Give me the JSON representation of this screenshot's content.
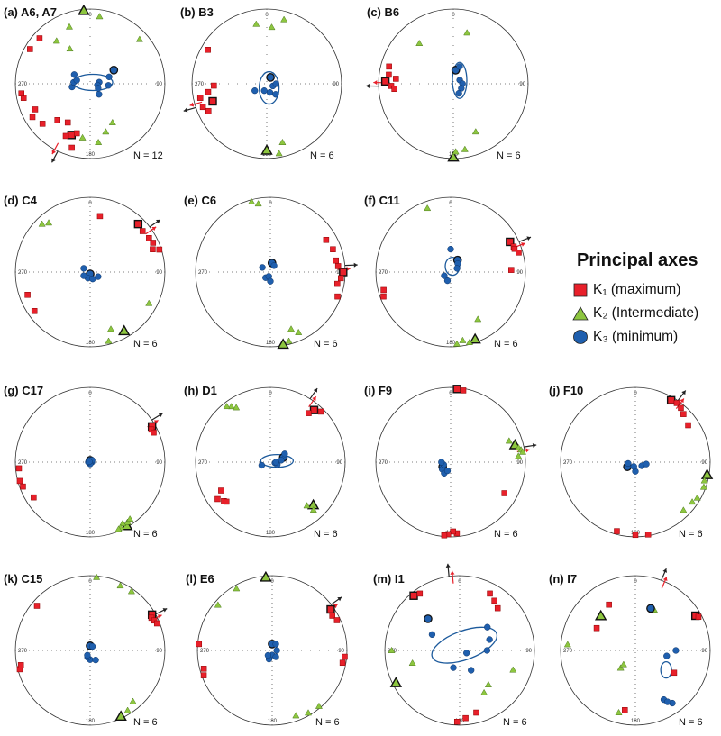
{
  "legend": {
    "title": "Principal axes",
    "items": [
      {
        "symbol": "square",
        "label": "K₁ (maximum)",
        "color": "#e8202a"
      },
      {
        "symbol": "triangle",
        "label": "K₂ (Intermediate)",
        "color": "#8dc63f"
      },
      {
        "symbol": "circle",
        "label": "K₃ (minimum)",
        "color": "#1f5fae"
      }
    ]
  },
  "colors": {
    "k1": "#e8202a",
    "k2": "#8dc63f",
    "k3": "#1f5fae",
    "k1_ellipse": "#d71920",
    "k2_ellipse": "#6cb33f",
    "k3_ellipse": "#1c5a9c"
  },
  "azimuth_labels": [
    "0",
    "90",
    "180",
    "270"
  ],
  "chart_data": [
    {
      "type": "scatter",
      "projection": "equal-area stereonet",
      "label": "(a)",
      "site": "A6, A7",
      "n": "N = 12",
      "k1": [
        [
          200,
          28
        ],
        [
          195,
          32
        ],
        [
          205,
          24
        ],
        [
          230,
          18
        ],
        [
          240,
          12
        ],
        [
          245,
          20
        ],
        [
          258,
          10
        ],
        [
          262,
          8
        ],
        [
          222,
          35
        ],
        [
          210,
          40
        ],
        [
          300,
          8
        ],
        [
          312,
          10
        ],
        [
          196,
          12
        ]
      ],
      "k2": [
        [
          355,
          2
        ],
        [
          8,
          10
        ],
        [
          48,
          12
        ],
        [
          150,
          40
        ],
        [
          162,
          33
        ],
        [
          172,
          22
        ],
        [
          188,
          28
        ],
        [
          330,
          45
        ],
        [
          322,
          28
        ],
        [
          340,
          20
        ]
      ],
      "k3": [
        [
          60,
          60
        ],
        [
          70,
          68
        ],
        [
          80,
          80
        ],
        [
          100,
          82
        ],
        [
          120,
          80
        ],
        [
          140,
          75
        ],
        [
          260,
          70
        ],
        [
          275,
          72
        ],
        [
          285,
          75
        ],
        [
          300,
          70
        ],
        [
          95,
          70
        ]
      ]
    },
    {
      "type": "scatter",
      "projection": "equal-area stereonet",
      "label": "(b)",
      "site": "B3",
      "n": "N = 6",
      "k1": [
        [
          252,
          25
        ],
        [
          258,
          10
        ],
        [
          245,
          15
        ],
        [
          262,
          22
        ],
        [
          268,
          30
        ],
        [
          250,
          10
        ],
        [
          300,
          10
        ]
      ],
      "k2": [
        [
          180,
          12
        ],
        [
          170,
          6
        ],
        [
          165,
          20
        ],
        [
          5,
          25
        ],
        [
          15,
          12
        ],
        [
          350,
          20
        ]
      ],
      "k3": [
        [
          30,
          82
        ],
        [
          160,
          80
        ],
        [
          200,
          82
        ],
        [
          240,
          75
        ],
        [
          110,
          83
        ],
        [
          90,
          80
        ],
        [
          140,
          75
        ]
      ]
    },
    {
      "type": "scatter",
      "projection": "equal-area stereonet",
      "label": "(c)",
      "site": "B6",
      "n": "N = 6",
      "k1": [
        [
          272,
          10
        ],
        [
          268,
          18
        ],
        [
          265,
          22
        ],
        [
          278,
          14
        ],
        [
          275,
          24
        ],
        [
          285,
          12
        ]
      ],
      "k2": [
        [
          180,
          2
        ],
        [
          178,
          10
        ],
        [
          170,
          12
        ],
        [
          155,
          30
        ],
        [
          320,
          30
        ],
        [
          15,
          30
        ]
      ],
      "k3": [
        [
          10,
          75
        ],
        [
          60,
          82
        ],
        [
          90,
          80
        ],
        [
          120,
          80
        ],
        [
          150,
          78
        ],
        [
          20,
          70
        ]
      ]
    },
    {
      "type": "scatter",
      "projection": "equal-area stereonet",
      "label": "(d)",
      "site": "C4",
      "n": "N = 6",
      "k1": [
        [
          45,
          10
        ],
        [
          52,
          12
        ],
        [
          60,
          10
        ],
        [
          65,
          8
        ],
        [
          70,
          12
        ],
        [
          72,
          3
        ],
        [
          10,
          25
        ],
        [
          235,
          10
        ],
        [
          250,
          12
        ]
      ],
      "k2": [
        [
          150,
          10
        ],
        [
          160,
          20
        ],
        [
          165,
          5
        ],
        [
          320,
          15
        ],
        [
          315,
          10
        ],
        [
          118,
          12
        ]
      ],
      "k3": [
        [
          180,
          88
        ],
        [
          200,
          83
        ],
        [
          160,
          82
        ],
        [
          120,
          80
        ],
        [
          240,
          82
        ],
        [
          300,
          82
        ]
      ]
    },
    {
      "type": "scatter",
      "projection": "equal-area stereonet",
      "label": "(e)",
      "site": "C6",
      "n": "N = 6",
      "k1": [
        [
          90,
          3
        ],
        [
          85,
          10
        ],
        [
          80,
          12
        ],
        [
          95,
          6
        ],
        [
          100,
          10
        ],
        [
          60,
          15
        ],
        [
          70,
          12
        ],
        [
          110,
          5
        ]
      ],
      "k2": [
        [
          170,
          2
        ],
        [
          160,
          20
        ],
        [
          165,
          5
        ],
        [
          345,
          3
        ],
        [
          350,
          8
        ],
        [
          155,
          12
        ]
      ],
      "k3": [
        [
          10,
          80
        ],
        [
          30,
          82
        ],
        [
          220,
          82
        ],
        [
          200,
          85
        ],
        [
          180,
          80
        ],
        [
          300,
          80
        ]
      ]
    },
    {
      "type": "scatter",
      "projection": "equal-area stereonet",
      "label": "(f)",
      "site": "C11",
      "n": "N = 6",
      "k1": [
        [
          63,
          12
        ],
        [
          68,
          10
        ],
        [
          70,
          10
        ],
        [
          74,
          6
        ],
        [
          88,
          20
        ],
        [
          250,
          5
        ],
        [
          255,
          8
        ]
      ],
      "k2": [
        [
          160,
          5
        ],
        [
          165,
          3
        ],
        [
          170,
          8
        ],
        [
          175,
          4
        ],
        [
          150,
          28
        ],
        [
          340,
          10
        ]
      ],
      "k3": [
        [
          30,
          75
        ],
        [
          40,
          78
        ],
        [
          60,
          82
        ],
        [
          200,
          80
        ],
        [
          240,
          82
        ],
        [
          0,
          65
        ]
      ]
    },
    {
      "type": "scatter",
      "projection": "equal-area stereonet",
      "label": "(g)",
      "site": "C17",
      "n": "N = 6",
      "k1": [
        [
          60,
          5
        ],
        [
          62,
          8
        ],
        [
          65,
          7
        ],
        [
          250,
          5
        ],
        [
          255,
          3
        ],
        [
          265,
          5
        ],
        [
          238,
          12
        ]
      ],
      "k2": [
        [
          150,
          2
        ],
        [
          148,
          6
        ],
        [
          152,
          8
        ],
        [
          155,
          4
        ],
        [
          157,
          3
        ],
        [
          145,
          8
        ]
      ],
      "k3": [
        [
          0,
          88
        ],
        [
          90,
          88
        ],
        [
          180,
          88
        ],
        [
          270,
          88
        ],
        [
          45,
          87
        ],
        [
          300,
          89
        ]
      ]
    },
    {
      "type": "scatter",
      "projection": "equal-area stereonet",
      "label": "(h)",
      "site": "D1",
      "n": "N = 6",
      "k1": [
        [
          40,
          10
        ],
        [
          38,
          18
        ],
        [
          45,
          5
        ],
        [
          235,
          15
        ],
        [
          230,
          20
        ],
        [
          228,
          22
        ],
        [
          240,
          25
        ]
      ],
      "k2": [
        [
          135,
          20
        ],
        [
          138,
          15
        ],
        [
          325,
          10
        ],
        [
          322,
          6
        ],
        [
          328,
          15
        ],
        [
          140,
          25
        ]
      ],
      "k3": [
        [
          70,
          75
        ],
        [
          80,
          78
        ],
        [
          100,
          85
        ],
        [
          250,
          80
        ],
        [
          60,
          72
        ],
        [
          110,
          82
        ],
        [
          90,
          84
        ]
      ]
    },
    {
      "type": "scatter",
      "projection": "equal-area stereonet",
      "label": "(i)",
      "site": "F9",
      "n": "N = 6",
      "k1": [
        [
          5,
          2
        ],
        [
          10,
          3
        ],
        [
          175,
          5
        ],
        [
          178,
          8
        ],
        [
          182,
          4
        ],
        [
          185,
          2
        ],
        [
          120,
          18
        ]
      ],
      "k2": [
        [
          75,
          12
        ],
        [
          78,
          8
        ],
        [
          80,
          5
        ],
        [
          82,
          3
        ],
        [
          85,
          10
        ],
        [
          70,
          18
        ]
      ],
      "k3": [
        [
          240,
          80
        ],
        [
          230,
          78
        ],
        [
          250,
          82
        ],
        [
          270,
          80
        ],
        [
          210,
          76
        ],
        [
          200,
          80
        ]
      ]
    },
    {
      "type": "scatter",
      "projection": "equal-area stereonet",
      "label": "(j)",
      "site": "F10",
      "n": "N = 6",
      "k1": [
        [
          30,
          5
        ],
        [
          35,
          4
        ],
        [
          40,
          6
        ],
        [
          45,
          10
        ],
        [
          55,
          15
        ],
        [
          180,
          3
        ],
        [
          195,
          5
        ],
        [
          170,
          2
        ]
      ],
      "k2": [
        [
          100,
          3
        ],
        [
          105,
          5
        ],
        [
          110,
          3
        ],
        [
          120,
          5
        ],
        [
          125,
          8
        ],
        [
          135,
          10
        ]
      ],
      "k3": [
        [
          240,
          80
        ],
        [
          260,
          82
        ],
        [
          180,
          80
        ],
        [
          120,
          82
        ],
        [
          100,
          78
        ],
        [
          200,
          85
        ]
      ]
    },
    {
      "type": "scatter",
      "projection": "equal-area stereonet",
      "label": "(k)",
      "site": "C15",
      "n": "N = 6",
      "k1": [
        [
          60,
          5
        ],
        [
          62,
          8
        ],
        [
          65,
          6
        ],
        [
          68,
          4
        ],
        [
          255,
          3
        ],
        [
          258,
          6
        ],
        [
          310,
          8
        ]
      ],
      "k2": [
        [
          155,
          3
        ],
        [
          148,
          6
        ],
        [
          140,
          12
        ],
        [
          5,
          2
        ],
        [
          25,
          5
        ],
        [
          35,
          4
        ]
      ],
      "k3": [
        [
          0,
          85
        ],
        [
          30,
          85
        ],
        [
          180,
          80
        ],
        [
          200,
          82
        ],
        [
          150,
          78
        ],
        [
          210,
          84
        ]
      ]
    },
    {
      "type": "scatter",
      "projection": "equal-area stereonet",
      "label": "(l)",
      "site": "E6",
      "n": "N = 6",
      "k1": [
        [
          55,
          5
        ],
        [
          60,
          8
        ],
        [
          65,
          5
        ],
        [
          250,
          3
        ],
        [
          255,
          6
        ],
        [
          95,
          3
        ],
        [
          275,
          2
        ],
        [
          100,
          5
        ]
      ],
      "k2": [
        [
          355,
          2
        ],
        [
          330,
          5
        ],
        [
          160,
          8
        ],
        [
          150,
          4
        ],
        [
          310,
          6
        ],
        [
          140,
          3
        ]
      ],
      "k3": [
        [
          0,
          83
        ],
        [
          30,
          82
        ],
        [
          180,
          85
        ],
        [
          200,
          80
        ],
        [
          220,
          83
        ],
        [
          150,
          82
        ],
        [
          90,
          85
        ]
      ]
    },
    {
      "type": "scatter",
      "projection": "equal-area stereonet",
      "label": "(m)",
      "site": "I1",
      "n": "N = 6",
      "k1": [
        [
          320,
          5
        ],
        [
          325,
          8
        ],
        [
          28,
          15
        ],
        [
          35,
          20
        ],
        [
          42,
          25
        ],
        [
          165,
          15
        ],
        [
          175,
          10
        ],
        [
          182,
          5
        ]
      ],
      "k2": [
        [
          243,
          5
        ],
        [
          270,
          10
        ],
        [
          140,
          40
        ],
        [
          150,
          35
        ],
        [
          110,
          25
        ],
        [
          255,
          35
        ]
      ],
      "k3": [
        [
          315,
          40
        ],
        [
          300,
          55
        ],
        [
          50,
          50
        ],
        [
          70,
          55
        ],
        [
          90,
          60
        ],
        [
          150,
          65
        ],
        [
          200,
          70
        ],
        [
          110,
          82
        ]
      ]
    },
    {
      "type": "scatter",
      "projection": "equal-area stereonet",
      "label": "(n)",
      "site": "I7",
      "n": "N = 6",
      "k1": [
        [
          60,
          8
        ],
        [
          62,
          5
        ],
        [
          330,
          30
        ],
        [
          300,
          40
        ],
        [
          120,
          40
        ],
        [
          190,
          20
        ]
      ],
      "k2": [
        [
          315,
          35
        ],
        [
          275,
          10
        ],
        [
          195,
          15
        ],
        [
          220,
          65
        ],
        [
          220,
          70
        ],
        [
          25,
          40
        ]
      ],
      "k3": [
        [
          20,
          40
        ],
        [
          90,
          45
        ],
        [
          100,
          55
        ],
        [
          145,
          15
        ],
        [
          150,
          25
        ],
        [
          148,
          20
        ]
      ]
    }
  ]
}
